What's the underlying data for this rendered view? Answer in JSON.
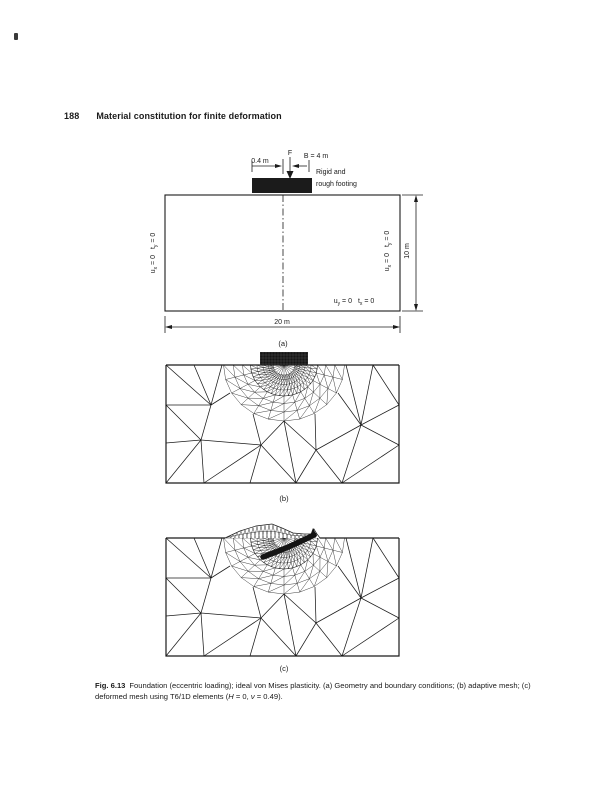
{
  "page": {
    "number": "188",
    "running_title": "Material constitution for finite deformation"
  },
  "figure": {
    "panel_a": {
      "label": "(a)",
      "force_label": "F",
      "dim_eccentricity": "0.4 m",
      "dim_footing_width": "B = 4 m",
      "footing_note_line1": "Rigid and",
      "footing_note_line2": "rough footing",
      "dim_height": "10 m",
      "dim_base": "20 m",
      "bc_left": {
        "v1": "u",
        "s1": "x",
        "e1": " = 0",
        "v2": "t",
        "s2": "y",
        "e2": " = 0"
      },
      "bc_right": {
        "v1": "u",
        "s1": "x",
        "e1": " = 0",
        "v2": "t",
        "s2": "y",
        "e2": " = 0"
      },
      "bc_bottom": {
        "v1": "u",
        "s1": "y",
        "e1": " = 0",
        "v2": "t",
        "s2": "x",
        "e2": " = 0"
      }
    },
    "panel_b": {
      "label": "(b)"
    },
    "panel_c": {
      "label": "(c)"
    },
    "caption": {
      "label": "Fig. 6.13",
      "body": "Foundation (eccentric loading); ideal von Mises plasticity. (a) Geometry and boundary conditions; (b) adaptive mesh; (c) deformed mesh using T6/1D elements (",
      "h": "H",
      "mid": " = 0, ",
      "nu": "ν",
      "tail": " = 0.49)."
    }
  },
  "colors": {
    "ink": "#1b1b1b",
    "paper": "#ffffff"
  }
}
